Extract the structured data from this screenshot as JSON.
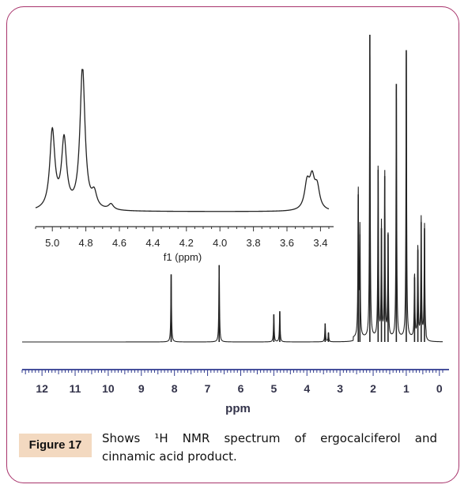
{
  "figure": {
    "label": "Figure 17",
    "caption_line1": "Shows ¹H NMR spectrum of ergocalciferol and",
    "caption_line2": "cinnamic acid product."
  },
  "colors": {
    "border": "#a8336b",
    "label_bg": "#f3d9c0",
    "axis": "#2f3a8f",
    "trace": "#222222"
  },
  "chart_data": [
    {
      "type": "line",
      "title": "",
      "xlabel": "ppm",
      "ylabel": "",
      "x_reversed": true,
      "xlim": [
        12.6,
        -0.1
      ],
      "x_ticks": [
        12,
        11,
        10,
        9,
        8,
        7,
        6,
        5,
        4,
        3,
        2,
        1,
        0
      ],
      "peaks": [
        {
          "ppm": 8.1,
          "height": 0.22
        },
        {
          "ppm": 6.65,
          "height": 0.25
        },
        {
          "ppm": 5.0,
          "height": 0.09
        },
        {
          "ppm": 4.82,
          "height": 0.1
        },
        {
          "ppm": 3.45,
          "height": 0.06
        },
        {
          "ppm": 3.35,
          "height": 0.03
        },
        {
          "ppm": 2.45,
          "height": 0.48
        },
        {
          "ppm": 2.4,
          "height": 0.35
        },
        {
          "ppm": 2.1,
          "height": 1.0
        },
        {
          "ppm": 1.85,
          "height": 0.56
        },
        {
          "ppm": 1.75,
          "height": 0.37
        },
        {
          "ppm": 1.65,
          "height": 0.54
        },
        {
          "ppm": 1.55,
          "height": 0.35
        },
        {
          "ppm": 1.3,
          "height": 0.84
        },
        {
          "ppm": 1.0,
          "height": 0.95
        },
        {
          "ppm": 0.75,
          "height": 0.21
        },
        {
          "ppm": 0.65,
          "height": 0.3
        },
        {
          "ppm": 0.55,
          "height": 0.39
        },
        {
          "ppm": 0.45,
          "height": 0.37
        }
      ]
    },
    {
      "type": "line",
      "title": "",
      "xlabel": "f1 (ppm)",
      "ylabel": "",
      "x_reversed": true,
      "xlim": [
        5.1,
        3.35
      ],
      "x_ticks": [
        5.0,
        4.8,
        4.6,
        4.4,
        4.2,
        4.0,
        3.8,
        3.6,
        3.4
      ],
      "x_tick_labels": [
        "5.0",
        "4.8",
        "4.6",
        "4.4",
        "4.2",
        "4.0",
        "3.8",
        "3.6",
        "3.4"
      ],
      "peaks": [
        {
          "ppm": 5.0,
          "height": 0.55
        },
        {
          "ppm": 4.93,
          "height": 0.48
        },
        {
          "ppm": 4.82,
          "height": 1.0
        },
        {
          "ppm": 4.75,
          "height": 0.1
        },
        {
          "ppm": 4.65,
          "height": 0.04
        },
        {
          "ppm": 3.48,
          "height": 0.18
        },
        {
          "ppm": 3.45,
          "height": 0.2
        },
        {
          "ppm": 3.42,
          "height": 0.15
        }
      ]
    }
  ]
}
